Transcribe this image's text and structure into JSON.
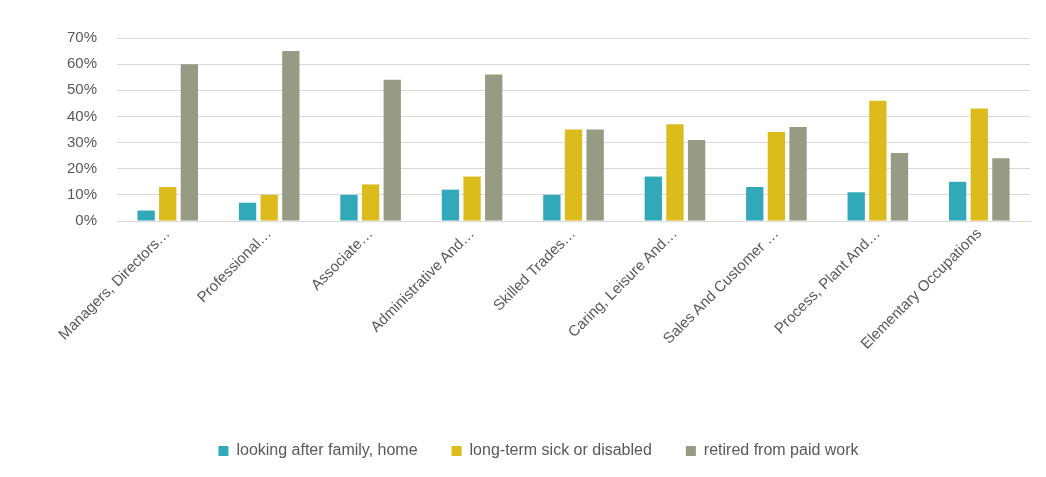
{
  "chart_data": {
    "type": "bar",
    "categories": [
      "Managers, Directors…",
      "Professional…",
      "Associate…",
      "Administrative And…",
      "Skilled Trades…",
      "Caring, Leisure And…",
      "Sales And Customer …",
      "Process, Plant And…",
      "Elementary Occupations"
    ],
    "series": [
      {
        "name": "looking after family, home",
        "color": "#31a9b8",
        "values": [
          4,
          7,
          10,
          12,
          10,
          17,
          13,
          11,
          15
        ]
      },
      {
        "name": "long-term sick or disabled",
        "color": "#dcbc1c",
        "values": [
          13,
          10,
          14,
          17,
          35,
          37,
          34,
          46,
          43
        ]
      },
      {
        "name": "retired from paid work",
        "color": "#979b83",
        "values": [
          60,
          65,
          54,
          56,
          35,
          31,
          36,
          26,
          24
        ]
      }
    ],
    "ylim": [
      0,
      70
    ],
    "yticks": [
      {
        "value": 0,
        "label": "0%"
      },
      {
        "value": 10,
        "label": "10%"
      },
      {
        "value": 20,
        "label": "20%"
      },
      {
        "value": 30,
        "label": "30%"
      },
      {
        "value": 40,
        "label": "40%"
      },
      {
        "value": 50,
        "label": "50%"
      },
      {
        "value": 60,
        "label": "60%"
      },
      {
        "value": 70,
        "label": "70%"
      }
    ],
    "grid": "y",
    "legend": "bottom"
  }
}
